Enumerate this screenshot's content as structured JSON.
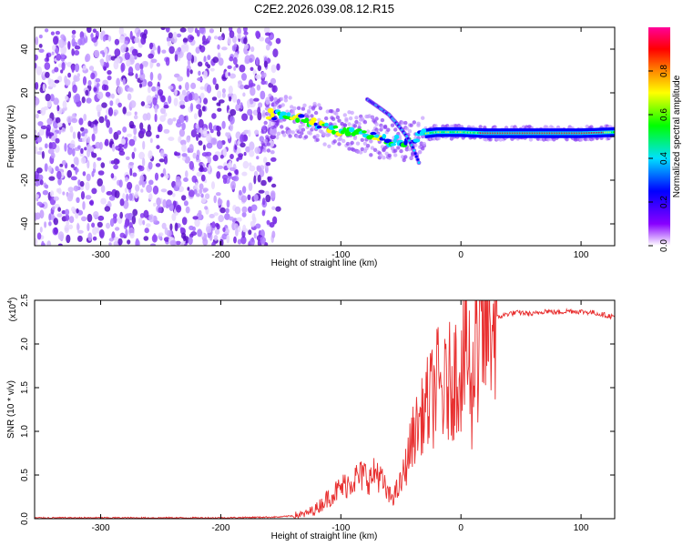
{
  "title": "C2E2.2026.039.08.12.R15",
  "chart_data": [
    {
      "type": "heatmap",
      "xlabel": "Height of straight line (km)",
      "ylabel": "Frequency (Hz)",
      "xlim": [
        -355,
        128
      ],
      "ylim": [
        -50,
        50
      ],
      "xticks": [
        -300,
        -200,
        -100,
        0,
        100
      ],
      "yticks": [
        -40,
        -20,
        0,
        20,
        40
      ],
      "grid": false,
      "colorbar": {
        "label": "Normalized spectral amplitude",
        "range": [
          0,
          1
        ],
        "ticks": [
          "0.0",
          "0.2",
          "0.4",
          "0.6",
          "0.8"
        ],
        "colors": [
          "#ffffff",
          "#8800ff",
          "#0000ff",
          "#00e0ff",
          "#00ff00",
          "#ffff00",
          "#ff8800",
          "#ff0000",
          "#ff0099"
        ]
      },
      "features": {
        "noise_region_x": [
          -355,
          -152
        ],
        "signal_track": [
          [
            -160,
            10
          ],
          [
            -140,
            9
          ],
          [
            -120,
            6
          ],
          [
            -100,
            3
          ],
          [
            -80,
            1
          ],
          [
            -60,
            -2
          ],
          [
            -50,
            -2
          ],
          [
            -40,
            -3
          ],
          [
            -35,
            1
          ],
          [
            -20,
            2
          ],
          [
            0,
            2
          ],
          [
            20,
            1.5
          ],
          [
            60,
            1.5
          ],
          [
            100,
            1.5
          ],
          [
            128,
            2
          ]
        ],
        "branch_track": [
          [
            -78,
            17
          ],
          [
            -70,
            14
          ],
          [
            -60,
            10
          ],
          [
            -52,
            5
          ],
          [
            -45,
            0
          ],
          [
            -40,
            -5
          ],
          [
            -35,
            -12
          ]
        ]
      }
    },
    {
      "type": "line",
      "xlabel": "Height of straight line (km)",
      "ylabel": "SNR (10 * v/v)",
      "y_multiplier": "(x10",
      "y_exponent": "4",
      "xlim": [
        -355,
        128
      ],
      "ylim": [
        0,
        2.5
      ],
      "xticks": [
        -300,
        -200,
        -100,
        0,
        100
      ],
      "yticks": [
        "0.0",
        "0.5",
        "1.0",
        "1.5",
        "2.0",
        "2.5"
      ],
      "grid": false,
      "color": "#e83030",
      "series": [
        {
          "x": [
            -355,
            -300,
            -250,
            -200,
            -150,
            -130,
            -120,
            -110,
            -100,
            -90,
            -80,
            -75,
            -70,
            -65,
            -60,
            -55,
            -50,
            -45,
            -40,
            -35,
            -30,
            -25,
            -20,
            -15,
            -10,
            -5,
            0,
            5,
            10,
            15,
            20,
            25,
            30,
            40,
            50,
            60,
            70,
            80,
            90,
            100,
            110,
            120,
            128
          ],
          "values": [
            0.01,
            0.01,
            0.01,
            0.01,
            0.02,
            0.05,
            0.12,
            0.25,
            0.35,
            0.45,
            0.5,
            0.45,
            0.55,
            0.4,
            0.25,
            0.28,
            0.4,
            0.65,
            0.95,
            1.1,
            1.25,
            1.35,
            1.55,
            1.4,
            1.55,
            1.65,
            1.75,
            1.9,
            1.75,
            1.95,
            2.1,
            2.25,
            2.3,
            2.35,
            2.36,
            2.34,
            2.38,
            2.36,
            2.38,
            2.37,
            2.36,
            2.33,
            2.31
          ]
        }
      ]
    }
  ]
}
